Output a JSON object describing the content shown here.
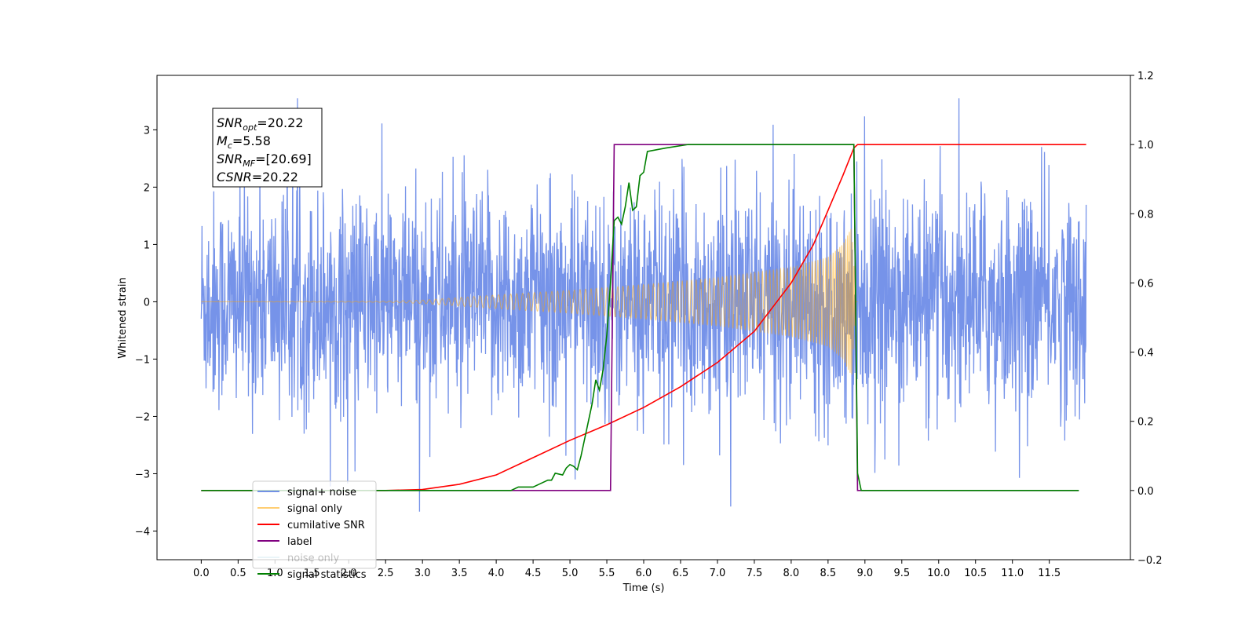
{
  "chart_data": {
    "type": "line",
    "xlabel": "Time (s)",
    "ylabel": "Whitened strain",
    "xlim": [
      -0.6,
      12.6
    ],
    "ylim": [
      -4.5,
      3.95
    ],
    "y2lim": [
      -0.2,
      1.2
    ],
    "xticks": [
      0.0,
      0.5,
      1.0,
      1.5,
      2.0,
      2.5,
      3.0,
      3.5,
      4.0,
      4.5,
      5.0,
      5.5,
      6.0,
      6.5,
      7.0,
      7.5,
      8.0,
      8.5,
      9.0,
      9.5,
      10.0,
      10.5,
      11.0,
      11.5
    ],
    "xtick_labels": [
      "0.0",
      "0.5",
      "1.0",
      "1.5",
      "2.0",
      "2.5",
      "3.0",
      "3.5",
      "4.0",
      "4.5",
      "5.0",
      "5.5",
      "6.0",
      "6.5",
      "7.0",
      "7.5",
      "8.0",
      "8.5",
      "9.0",
      "9.5",
      "10.0",
      "10.5",
      "11.0",
      "11.5"
    ],
    "yticks": [
      -4,
      -3,
      -2,
      -1,
      0,
      1,
      2,
      3
    ],
    "ytick_labels": [
      "−4",
      "−3",
      "−2",
      "−1",
      "0",
      "1",
      "2",
      "3"
    ],
    "y2ticks": [
      -0.2,
      0.0,
      0.2,
      0.4,
      0.6,
      0.8,
      1.0,
      1.2
    ],
    "y2tick_labels": [
      "−0.2",
      "0.0",
      "0.2",
      "0.4",
      "0.6",
      "0.8",
      "1.0",
      "1.2"
    ],
    "grid": false,
    "legend_position": "lower-left",
    "stats_box": [
      {
        "sym": "SNR",
        "sub": "opt",
        "value": "=20.22"
      },
      {
        "sym": "M",
        "sub": "c",
        "value": "=5.58"
      },
      {
        "sym": "SNR",
        "sub": "MF",
        "value": "=[20.69]"
      },
      {
        "sym": "CSNR",
        "sub": "",
        "value": "=20.22"
      }
    ],
    "series": [
      {
        "name": "signal+ noise",
        "axis": "left",
        "color": "#4169E1",
        "opacity": 0.72,
        "kind": "noise",
        "time_range": [
          0.0,
          12.0
        ],
        "typical_range": [
          -2.2,
          2.2
        ],
        "extremes": [
          -4.1,
          3.55
        ]
      },
      {
        "name": "signal only",
        "axis": "left",
        "color": "#FFA500",
        "opacity": 0.5,
        "kind": "chirp",
        "time_range": [
          0.0,
          8.9
        ],
        "envelope_points": [
          [
            0.0,
            0.0
          ],
          [
            2.5,
            0.01
          ],
          [
            3.0,
            0.03
          ],
          [
            4.0,
            0.12
          ],
          [
            5.0,
            0.2
          ],
          [
            6.0,
            0.3
          ],
          [
            7.0,
            0.42
          ],
          [
            8.0,
            0.6
          ],
          [
            8.5,
            0.78
          ],
          [
            8.7,
            1.0
          ],
          [
            8.82,
            1.3
          ],
          [
            8.88,
            0.0
          ]
        ],
        "extremes": [
          -1.7,
          1.3
        ]
      },
      {
        "name": "cumilative SNR",
        "axis": "right",
        "color": "#FF0000",
        "points": [
          [
            0.0,
            0.0
          ],
          [
            2.5,
            0.0
          ],
          [
            3.0,
            0.003
          ],
          [
            3.5,
            0.018
          ],
          [
            4.0,
            0.045
          ],
          [
            4.5,
            0.095
          ],
          [
            5.0,
            0.145
          ],
          [
            5.5,
            0.19
          ],
          [
            6.0,
            0.24
          ],
          [
            6.5,
            0.3
          ],
          [
            7.0,
            0.37
          ],
          [
            7.5,
            0.46
          ],
          [
            8.0,
            0.6
          ],
          [
            8.3,
            0.71
          ],
          [
            8.5,
            0.81
          ],
          [
            8.7,
            0.91
          ],
          [
            8.85,
            0.99
          ],
          [
            8.9,
            1.0
          ],
          [
            12.0,
            1.0
          ]
        ]
      },
      {
        "name": "label",
        "axis": "right",
        "color": "#800080",
        "points": [
          [
            0.0,
            0.0
          ],
          [
            5.55,
            0.0
          ],
          [
            5.6,
            1.0
          ],
          [
            8.85,
            1.0
          ],
          [
            8.9,
            0.0
          ],
          [
            11.9,
            0.0
          ]
        ]
      },
      {
        "name": "noise only",
        "axis": "right",
        "color": "#ADD8E6",
        "hidden": true,
        "points": []
      },
      {
        "name": "signal statistics",
        "axis": "right",
        "color": "#008000",
        "points": [
          [
            0.0,
            0.0
          ],
          [
            3.8,
            0.0
          ],
          [
            4.2,
            0.0
          ],
          [
            4.3,
            0.01
          ],
          [
            4.4,
            0.01
          ],
          [
            4.5,
            0.01
          ],
          [
            4.6,
            0.02
          ],
          [
            4.7,
            0.03
          ],
          [
            4.75,
            0.03
          ],
          [
            4.8,
            0.05
          ],
          [
            4.9,
            0.045
          ],
          [
            4.95,
            0.065
          ],
          [
            5.0,
            0.075
          ],
          [
            5.05,
            0.07
          ],
          [
            5.1,
            0.06
          ],
          [
            5.15,
            0.1
          ],
          [
            5.2,
            0.15
          ],
          [
            5.25,
            0.2
          ],
          [
            5.3,
            0.25
          ],
          [
            5.35,
            0.32
          ],
          [
            5.4,
            0.29
          ],
          [
            5.45,
            0.35
          ],
          [
            5.5,
            0.45
          ],
          [
            5.55,
            0.6
          ],
          [
            5.6,
            0.78
          ],
          [
            5.65,
            0.79
          ],
          [
            5.7,
            0.77
          ],
          [
            5.75,
            0.82
          ],
          [
            5.8,
            0.89
          ],
          [
            5.85,
            0.81
          ],
          [
            5.9,
            0.82
          ],
          [
            5.95,
            0.91
          ],
          [
            6.0,
            0.92
          ],
          [
            6.05,
            0.98
          ],
          [
            6.3,
            0.99
          ],
          [
            6.6,
            1.0
          ],
          [
            8.85,
            1.0
          ],
          [
            8.9,
            0.05
          ],
          [
            8.95,
            0.0
          ],
          [
            11.9,
            0.0
          ]
        ]
      }
    ]
  }
}
